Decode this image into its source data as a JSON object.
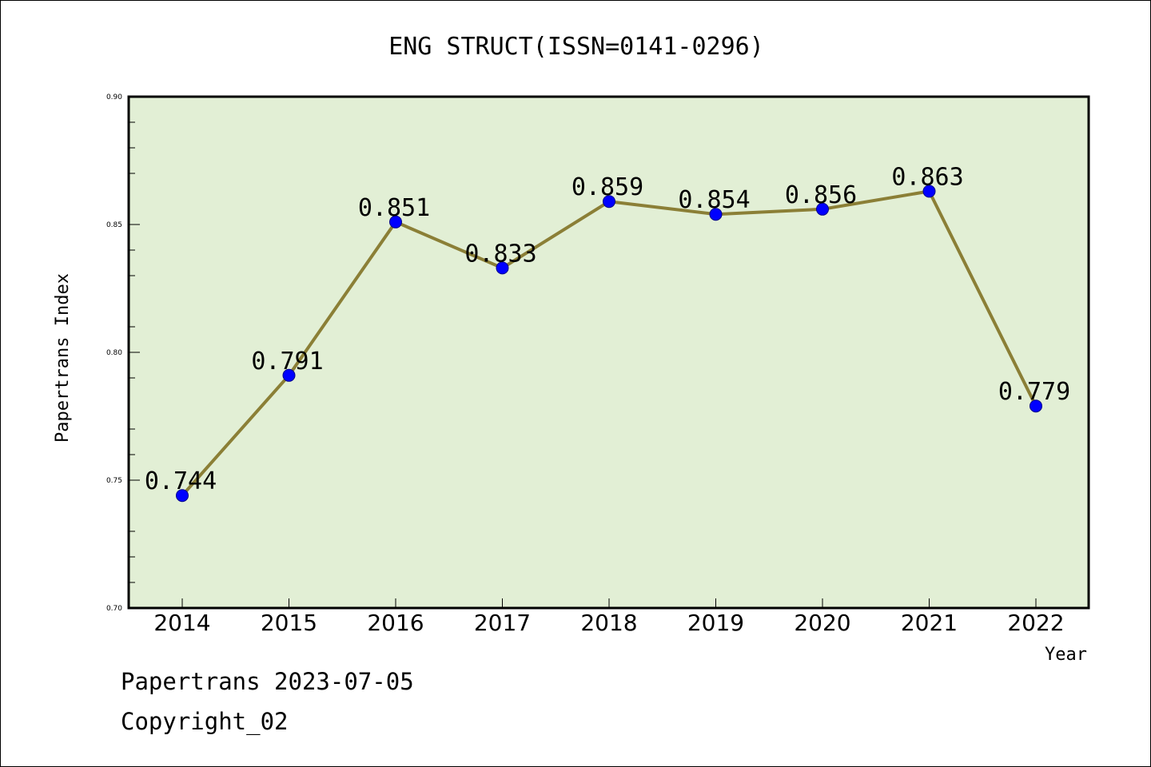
{
  "chart_data": {
    "type": "line",
    "title": "ENG STRUCT(ISSN=0141-0296)",
    "xlabel": "Year",
    "ylabel": "Papertrans Index",
    "categories": [
      "2014",
      "2015",
      "2016",
      "2017",
      "2018",
      "2019",
      "2020",
      "2021",
      "2022"
    ],
    "values": [
      0.744,
      0.791,
      0.851,
      0.833,
      0.859,
      0.854,
      0.856,
      0.863,
      0.779
    ],
    "data_labels": [
      "0.744",
      "0.791",
      "0.851",
      "0.833",
      "0.859",
      "0.854",
      "0.856",
      "0.863",
      "0.779"
    ],
    "ylim": [
      0.7,
      0.9
    ],
    "yticks": [
      "0.70",
      "0.75",
      "0.80",
      "0.85",
      "0.90"
    ],
    "grid": false,
    "colors": {
      "plot_background": "#e2efd5",
      "line": "#8b7f36",
      "marker": "#0000ff"
    }
  },
  "footer": {
    "line1": "Papertrans 2023-07-05",
    "line2": "Copyright_02"
  }
}
